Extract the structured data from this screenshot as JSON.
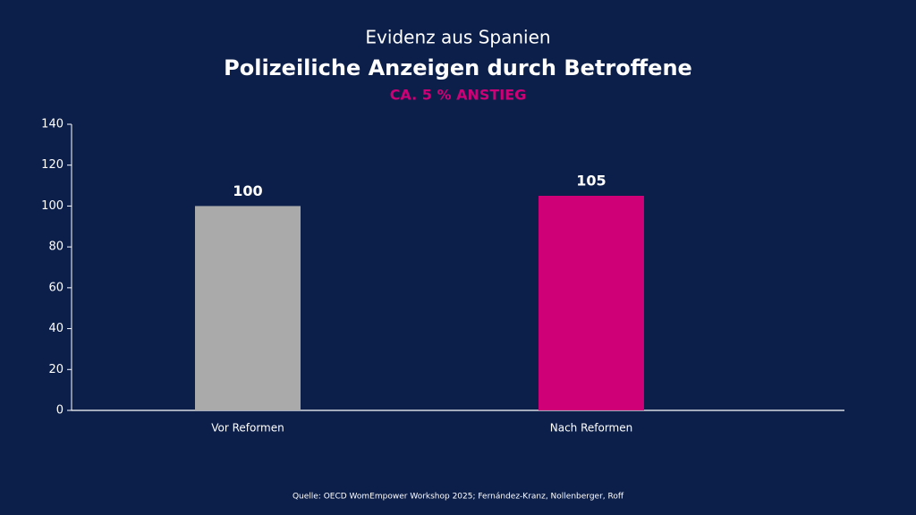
{
  "chart_data": {
    "type": "bar",
    "kicker": "Evidenz aus Spanien",
    "title": "Polizeiliche Anzeigen durch Betroffene",
    "highlight": "CA. 5 % ANSTIEG",
    "source": "Quelle: OECD WomEmpower Workshop 2025; Fernández-Kranz, Nollenberger, Roff",
    "categories": [
      "Vor Reformen",
      "Nach Reformen"
    ],
    "values": [
      100,
      105
    ],
    "colors": [
      "#aaaaaa",
      "#cf0077"
    ],
    "ylim": [
      0,
      140
    ],
    "yticks": [
      0,
      20,
      40,
      60,
      80,
      100,
      120,
      140
    ],
    "grid": false
  }
}
